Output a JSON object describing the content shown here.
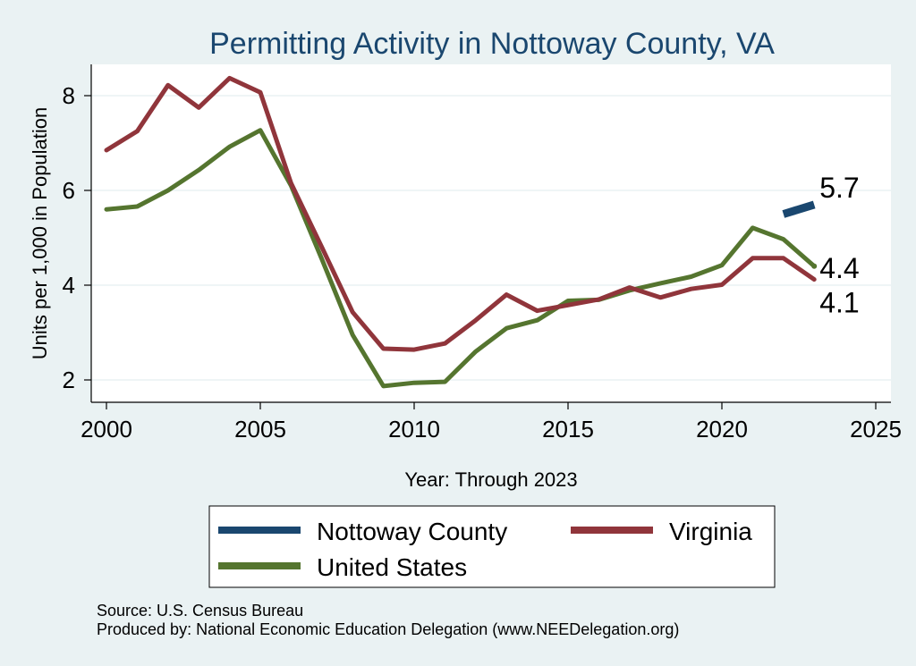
{
  "chart_data": {
    "type": "line",
    "title": "Permitting Activity in Nottoway County, VA",
    "xlabel": "Year: Through 2023",
    "ylabel": "Units per 1,000 in Population",
    "xlim": [
      2000,
      2025
    ],
    "ylim": [
      1.6,
      8.7
    ],
    "xticks": [
      2000,
      2005,
      2010,
      2015,
      2020,
      2025
    ],
    "yticks": [
      2,
      4,
      6,
      8
    ],
    "grid": true,
    "series": [
      {
        "name": "Nottoway County",
        "color": "#1a476f",
        "x": [
          2022,
          2023
        ],
        "values": [
          5.5,
          5.7
        ],
        "end_label": "5.7"
      },
      {
        "name": "Virginia",
        "color": "#90353b",
        "x": [
          2000,
          2001,
          2002,
          2003,
          2004,
          2005,
          2006,
          2007,
          2008,
          2009,
          2010,
          2011,
          2012,
          2013,
          2014,
          2015,
          2016,
          2017,
          2018,
          2019,
          2020,
          2021,
          2022,
          2023
        ],
        "values": [
          6.85,
          7.25,
          8.22,
          7.75,
          8.37,
          8.07,
          6.15,
          4.8,
          3.43,
          2.66,
          2.64,
          2.77,
          3.26,
          3.8,
          3.46,
          3.58,
          3.7,
          3.95,
          3.74,
          3.92,
          4.01,
          4.57,
          4.57,
          4.12
        ],
        "end_label": "4.1"
      },
      {
        "name": "United States",
        "color": "#55752f",
        "x": [
          2000,
          2001,
          2002,
          2003,
          2004,
          2005,
          2006,
          2007,
          2008,
          2009,
          2010,
          2011,
          2012,
          2013,
          2014,
          2015,
          2016,
          2017,
          2018,
          2019,
          2020,
          2021,
          2022,
          2023
        ],
        "values": [
          5.6,
          5.66,
          6.0,
          6.43,
          6.92,
          7.27,
          6.1,
          4.55,
          2.95,
          1.87,
          1.94,
          1.96,
          2.6,
          3.09,
          3.26,
          3.67,
          3.69,
          3.89,
          4.04,
          4.18,
          4.42,
          5.21,
          4.97,
          4.4
        ],
        "end_label": "4.4"
      }
    ],
    "legend": {
      "position": "bottom",
      "entries": [
        "Nottoway County",
        "Virginia",
        "United States"
      ]
    }
  },
  "notes": {
    "source": "Source: U.S. Census Bureau",
    "produced": "Produced by: National Economic Education Delegation (www.NEEDelegation.org)"
  }
}
